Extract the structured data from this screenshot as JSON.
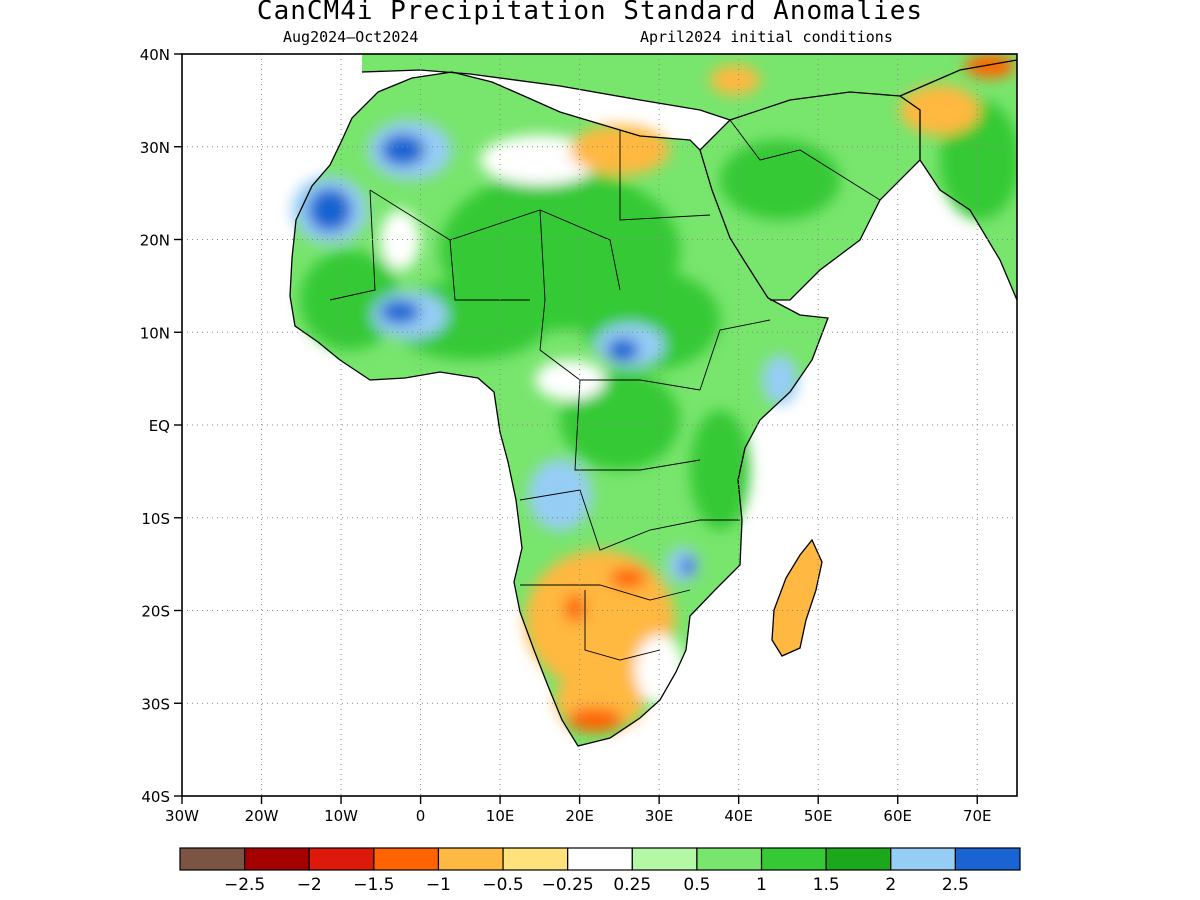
{
  "title": "CanCM4i Precipitation Standard Anomalies",
  "subtitle_left": "Aug2024–Oct2024",
  "subtitle_right": "April2024 initial conditions",
  "y_ticks": [
    "40N",
    "30N",
    "20N",
    "10N",
    "EQ",
    "10S",
    "20S",
    "30S",
    "40S"
  ],
  "x_ticks": [
    "30W",
    "20W",
    "10W",
    "0",
    "10E",
    "20E",
    "30E",
    "40E",
    "50E",
    "60E",
    "70E"
  ],
  "map": {
    "lon_range": [
      -30,
      75
    ],
    "lat_range": [
      -40,
      40
    ]
  },
  "colorbar": {
    "colors": [
      "#7a5544",
      "#a50000",
      "#dd1a0a",
      "#ff6400",
      "#ffb841",
      "#ffe27b",
      "#ffffff",
      "#b4f8a5",
      "#78e56d",
      "#36c936",
      "#1ba91b",
      "#96cdf5",
      "#1963d2"
    ],
    "labels": [
      "−2.5",
      "−2",
      "−1.5",
      "−1",
      "−0.5",
      "−0.25",
      "0.25",
      "0.5",
      "1",
      "1.5",
      "2",
      "2.5"
    ]
  }
}
